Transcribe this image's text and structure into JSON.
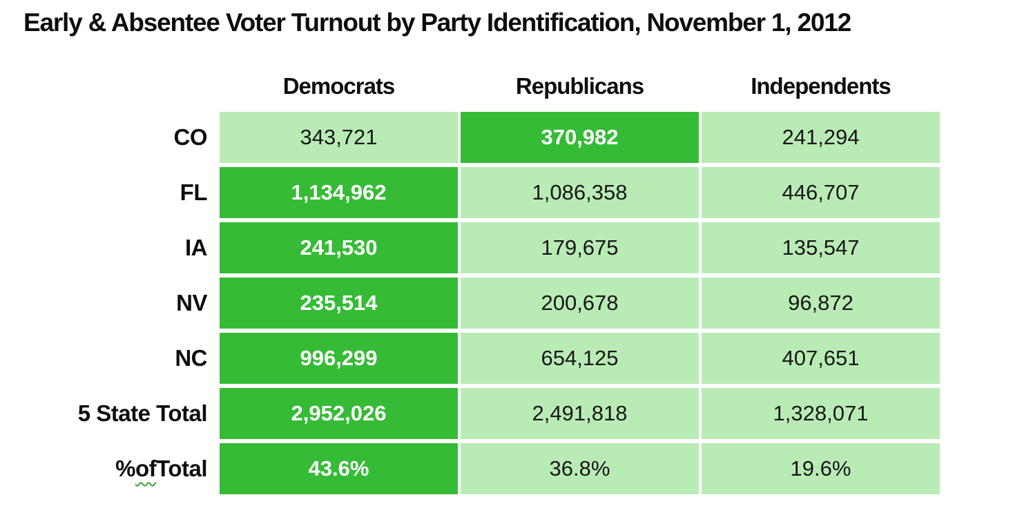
{
  "title": "Early & Absentee Voter Turnout by Party Identification, November 1, 2012",
  "colors": {
    "highlight_cell": "#36bb36",
    "normal_cell": "#b9ecb5",
    "squiggle": "#3aa33a",
    "text": "#0d0d0d",
    "highlight_text": "#ffffff"
  },
  "table": {
    "columns": [
      "Democrats",
      "Republicans",
      "Independents"
    ],
    "rows": [
      {
        "label": "CO",
        "cells": [
          {
            "value": "343,721",
            "highlight": false
          },
          {
            "value": "370,982",
            "highlight": true
          },
          {
            "value": "241,294",
            "highlight": false
          }
        ]
      },
      {
        "label": "FL",
        "cells": [
          {
            "value": "1,134,962",
            "highlight": true
          },
          {
            "value": "1,086,358",
            "highlight": false
          },
          {
            "value": "446,707",
            "highlight": false
          }
        ]
      },
      {
        "label": "IA",
        "cells": [
          {
            "value": "241,530",
            "highlight": true
          },
          {
            "value": "179,675",
            "highlight": false
          },
          {
            "value": "135,547",
            "highlight": false
          }
        ]
      },
      {
        "label": "NV",
        "cells": [
          {
            "value": "235,514",
            "highlight": true
          },
          {
            "value": "200,678",
            "highlight": false
          },
          {
            "value": "96,872",
            "highlight": false
          }
        ]
      },
      {
        "label": "NC",
        "cells": [
          {
            "value": "996,299",
            "highlight": true
          },
          {
            "value": "654,125",
            "highlight": false
          },
          {
            "value": "407,651",
            "highlight": false
          }
        ]
      },
      {
        "label": "5 State Total",
        "cells": [
          {
            "value": "2,952,026",
            "highlight": true
          },
          {
            "value": "2,491,818",
            "highlight": false
          },
          {
            "value": "1,328,071",
            "highlight": false
          }
        ]
      },
      {
        "label": "% of Total",
        "label_parts": {
          "p1": "% ",
          "p2": "of",
          "p3": " Total"
        },
        "cells": [
          {
            "value": "43.6%",
            "highlight": true
          },
          {
            "value": "36.8%",
            "highlight": false
          },
          {
            "value": "19.6%",
            "highlight": false
          }
        ]
      }
    ]
  },
  "chart_data": {
    "type": "table",
    "title": "Early & Absentee Voter Turnout by Party Identification, November 1, 2012",
    "columns": [
      "Democrats",
      "Republicans",
      "Independents"
    ],
    "row_labels": [
      "CO",
      "FL",
      "IA",
      "NV",
      "NC",
      "5 State Total",
      "% of Total"
    ],
    "values": [
      [
        343721,
        370982,
        241294
      ],
      [
        1134962,
        1086358,
        446707
      ],
      [
        241530,
        179675,
        135547
      ],
      [
        235514,
        200678,
        96872
      ],
      [
        996299,
        654125,
        407651
      ],
      [
        2952026,
        2491818,
        1328071
      ],
      [
        "43.6%",
        "36.8%",
        "19.6%"
      ]
    ],
    "highlighted_cells_note": "Per row, the party with the highest turnout is highlighted dark green; CO: Republicans, all other rows: Democrats",
    "legend_position": "none",
    "grid": "white gaps between solid cells"
  }
}
